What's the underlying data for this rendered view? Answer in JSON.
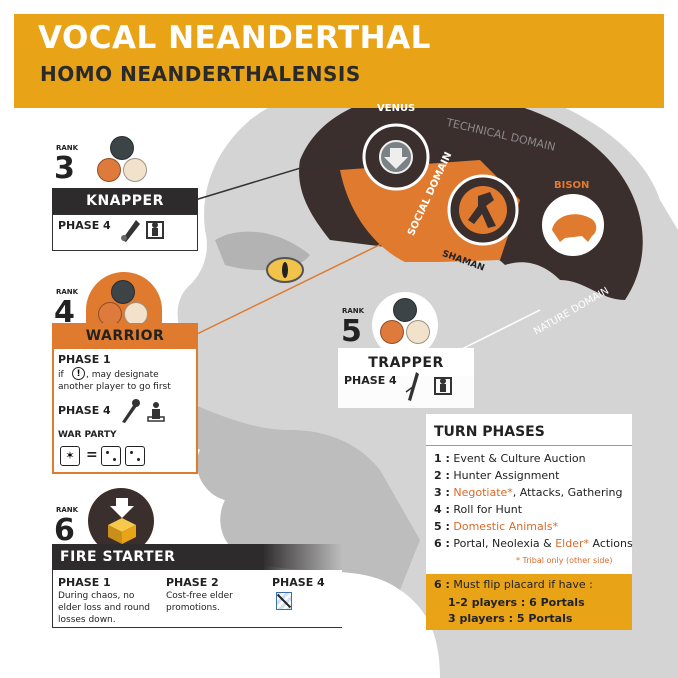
{
  "header": {
    "title": "VOCAL NEANDERTHAL",
    "subtitle": "HOMO NEANDERTHALENSIS"
  },
  "colors": {
    "accent": "#e8a317",
    "orange": "#e07a2f",
    "dark": "#2e2b2c",
    "gray": "#cfcfcf"
  },
  "brain": {
    "venus": "VENUS",
    "technical": "TECHNICAL DOMAIN",
    "social": "SOCIAL DOMAIN",
    "shaman": "SHAMAN",
    "bison": "BISON",
    "nature": "NATURE DOMAIN"
  },
  "rank_label": "RANK",
  "roles": [
    {
      "rank": "3",
      "name": "KNAPPER",
      "phase": "PHASE 4"
    },
    {
      "rank": "4",
      "name": "WARRIOR",
      "phase1": "PHASE 1",
      "phase1_line1_a": "if",
      "phase1_line1_b": ", may designate",
      "phase1_line2": "another player to go first",
      "phase4": "PHASE 4",
      "warparty": "WAR PARTY",
      "equals": "="
    },
    {
      "rank": "5",
      "name": "TRAPPER",
      "phase": "PHASE 4"
    },
    {
      "rank": "6",
      "name": "FIRE STARTER",
      "p1": "PHASE 1",
      "p1_l1": "During chaos, no",
      "p1_l2": "elder loss and round",
      "p1_l3": "losses down.",
      "p2": "PHASE 2",
      "p2_l1": "Cost-free elder",
      "p2_l2": "promotions.",
      "p4": "PHASE 4"
    }
  ],
  "turn_phases": {
    "title": "TURN PHASES",
    "rows": [
      {
        "num": "1 :",
        "text": "Event & Culture Auction"
      },
      {
        "num": "2 :",
        "text": "Hunter Assignment"
      },
      {
        "num": "3 :",
        "a": "Negotiate*",
        "b": ", Attacks, Gathering"
      },
      {
        "num": "4 :",
        "text": "Roll for Hunt"
      },
      {
        "num": "5 :",
        "a": "Domestic Animals*"
      },
      {
        "num": "6 :",
        "a": "Portal, Neolexia & ",
        "b": "Elder*",
        "c": " Actions"
      }
    ],
    "footnote": "* Tribal only (other side)",
    "flip_num": "6 :",
    "flip_text": "Must flip placard if have :",
    "flip_1": "1-2 players : 6 Portals",
    "flip_2": "3 players : 5 Portals"
  }
}
